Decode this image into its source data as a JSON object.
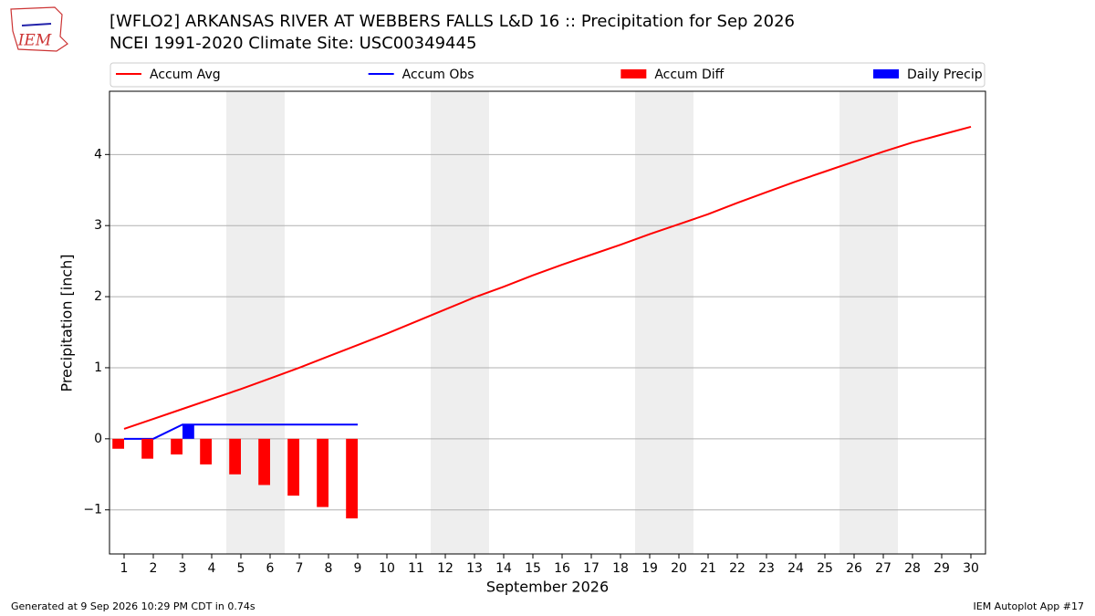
{
  "chart_data": {
    "type": "line",
    "title": "[WFLO2] ARKANSAS RIVER  AT WEBBERS FALLS L&D 16 :: Precipitation for Sep 2026",
    "subtitle": "NCEI 1991-2020 Climate Site: USC00349445",
    "logo": "IEM",
    "xlabel": "September 2026",
    "ylabel": "Precipitation [inch]",
    "footer_left": "Generated at 9 Sep 2026 10:29 PM CDT in 0.74s",
    "footer_right": "IEM Autoplot App #17",
    "x": [
      1,
      2,
      3,
      4,
      5,
      6,
      7,
      8,
      9,
      10,
      11,
      12,
      13,
      14,
      15,
      16,
      17,
      18,
      19,
      20,
      21,
      22,
      23,
      24,
      25,
      26,
      27,
      28,
      29,
      30
    ],
    "xlim": [
      0.5,
      30.5
    ],
    "xticks": [
      1,
      2,
      3,
      4,
      5,
      6,
      7,
      8,
      9,
      10,
      11,
      12,
      13,
      14,
      15,
      16,
      17,
      18,
      19,
      20,
      21,
      22,
      23,
      24,
      25,
      26,
      27,
      28,
      29,
      30
    ],
    "ylim": [
      -1.62,
      4.89
    ],
    "yticks": [
      {
        "value": -1,
        "label": "−1"
      },
      0,
      1,
      2,
      3,
      4
    ],
    "grid": true,
    "weekend_spans": [
      [
        4.5,
        6.5
      ],
      [
        11.5,
        13.5
      ],
      [
        18.5,
        20.5
      ],
      [
        25.5,
        27.5
      ]
    ],
    "series": [
      {
        "name": "Accum Avg",
        "type": "line",
        "color": "#ff0000",
        "values": [
          0.14,
          0.28,
          0.42,
          0.56,
          0.7,
          0.85,
          1.0,
          1.16,
          1.32,
          1.48,
          1.65,
          1.82,
          1.99,
          2.14,
          2.3,
          2.45,
          2.59,
          2.73,
          2.88,
          3.02,
          3.16,
          3.32,
          3.47,
          3.62,
          3.76,
          3.9,
          4.04,
          4.17,
          4.28,
          4.39
        ]
      },
      {
        "name": "Accum Obs",
        "type": "line",
        "color": "#0000ff",
        "values": [
          0,
          0,
          0.2,
          0.2,
          0.2,
          0.2,
          0.2,
          0.2,
          0.2,
          null,
          null,
          null,
          null,
          null,
          null,
          null,
          null,
          null,
          null,
          null,
          null,
          null,
          null,
          null,
          null,
          null,
          null,
          null,
          null,
          null
        ]
      },
      {
        "name": "Accum Diff",
        "type": "bar",
        "align": "left",
        "color": "#ff0000",
        "values": [
          -0.14,
          -0.28,
          -0.22,
          -0.36,
          -0.5,
          -0.65,
          -0.8,
          -0.96,
          -1.12,
          null,
          null,
          null,
          null,
          null,
          null,
          null,
          null,
          null,
          null,
          null,
          null,
          null,
          null,
          null,
          null,
          null,
          null,
          null,
          null,
          null
        ]
      },
      {
        "name": "Daily Precip",
        "type": "bar",
        "align": "right",
        "color": "#0000ff",
        "values": [
          0,
          0,
          0.2,
          0,
          0,
          0,
          0,
          0,
          0,
          null,
          null,
          null,
          null,
          null,
          null,
          null,
          null,
          null,
          null,
          null,
          null,
          null,
          null,
          null,
          null,
          null,
          null,
          null,
          null,
          null
        ]
      }
    ]
  }
}
